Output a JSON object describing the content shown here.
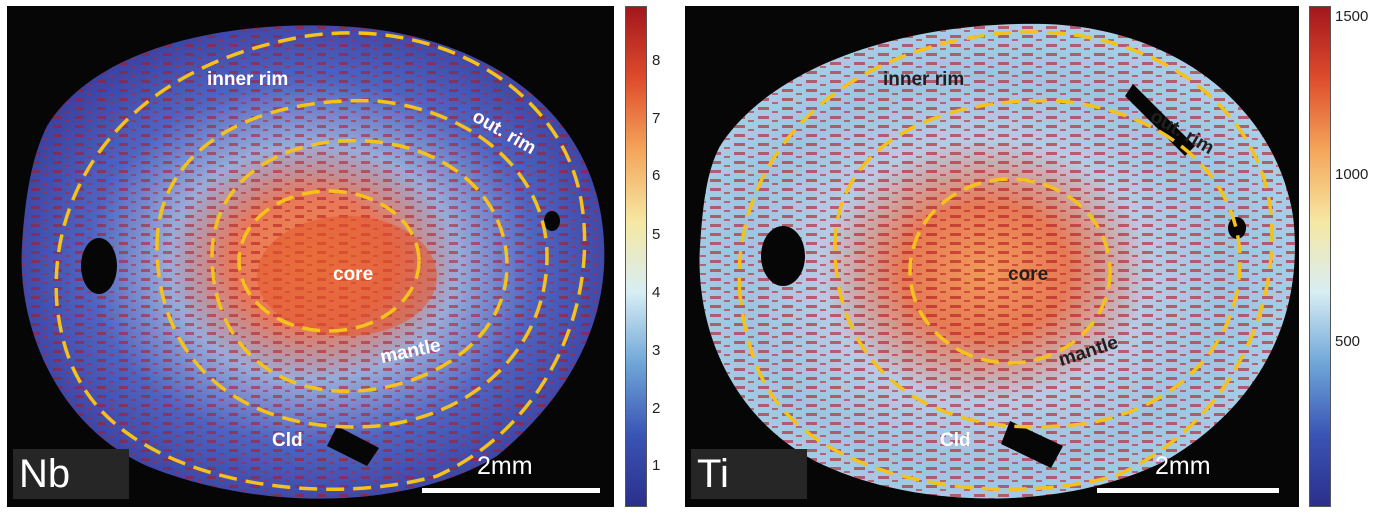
{
  "panels": [
    {
      "element": "Nb",
      "scale_label": "2mm",
      "zones": {
        "inner_rim": "inner rim",
        "outer_rim": "out. rim",
        "core": "core",
        "mantle": "mantle",
        "cld": "Cld"
      },
      "colorbar_ticks": [
        "8",
        "7",
        "6",
        "5",
        "4",
        "3",
        "2",
        "1"
      ],
      "colormap": [
        "#2b2f8c",
        "#3a55b5",
        "#6fa6d8",
        "#d8eef4",
        "#f6e7a2",
        "#f4a55a",
        "#de4c2c",
        "#a3161d"
      ]
    },
    {
      "element": "Ti",
      "scale_label": "2mm",
      "zones": {
        "inner_rim": "inner rim",
        "outer_rim": "out. rim",
        "core": "core",
        "mantle": "mantle",
        "cld": "Cld"
      },
      "colorbar_ticks": [
        "1500",
        "1000",
        "500"
      ],
      "colormap": [
        "#2b2f8c",
        "#3a55b5",
        "#6fa6d8",
        "#d8eef4",
        "#f6e7a2",
        "#f4a55a",
        "#de4c2c",
        "#a3161d"
      ]
    }
  ],
  "colors": {
    "boundary_dash": "#f4c21a",
    "label_light": "#ffffff",
    "label_dark": "#202020"
  }
}
